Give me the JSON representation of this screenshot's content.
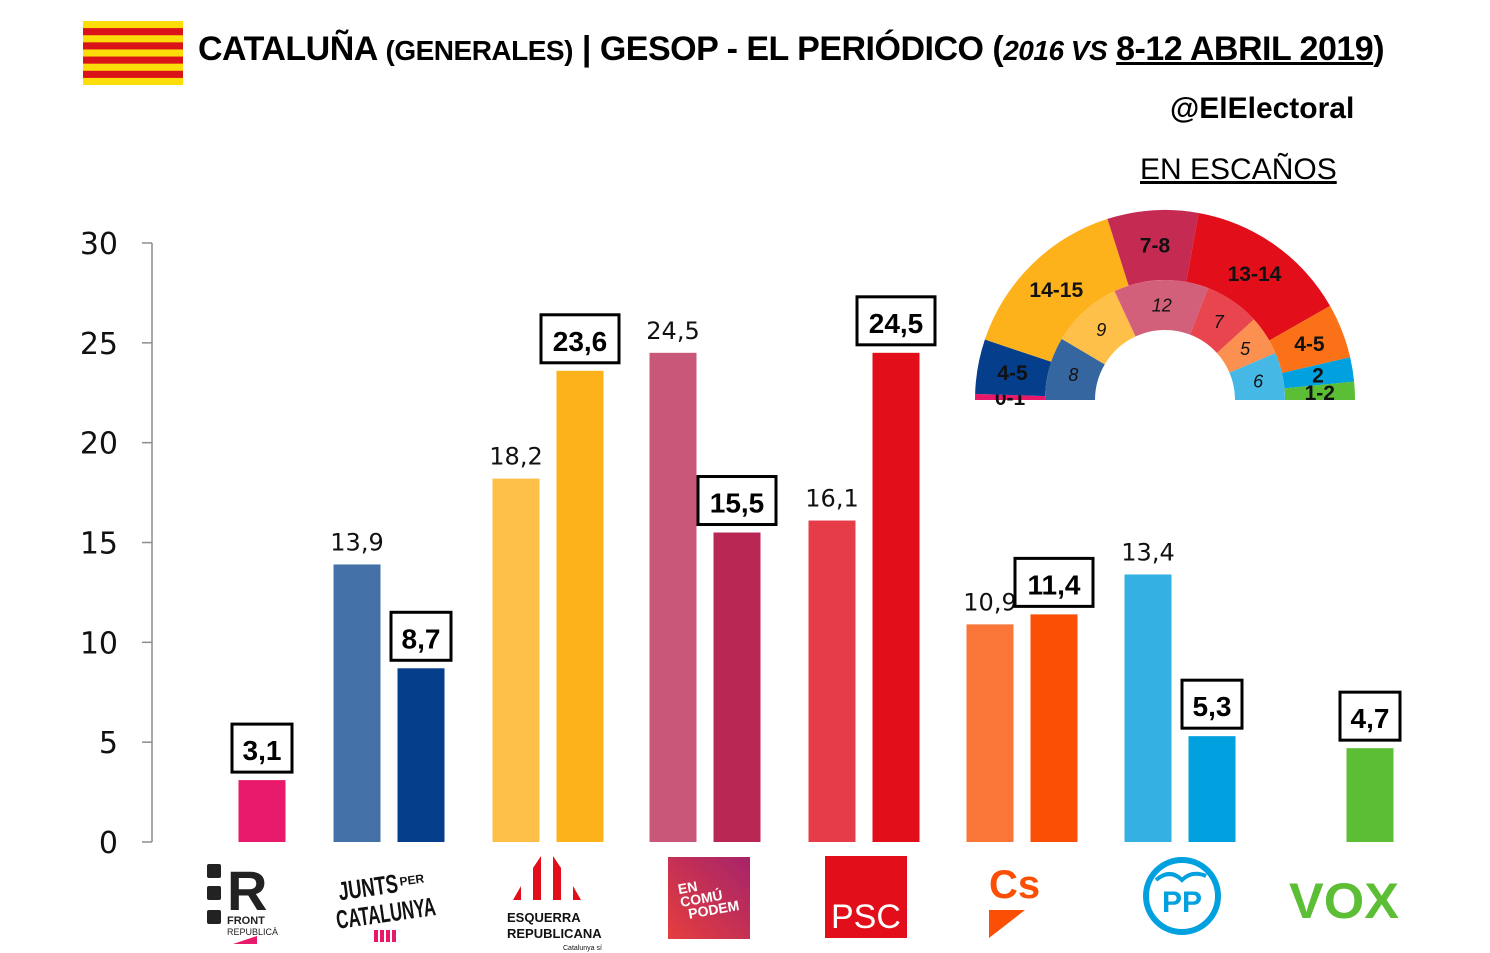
{
  "header": {
    "title_main": "CATALUÑA",
    "title_sub": "(GENERALES)",
    "title_sep": "|",
    "title_pollster": "GESOP - EL PERIÓDICO",
    "title_open": "(",
    "title_period_prev": "2016 VS",
    "title_period_current": "8-12 ABRIL 2019",
    "title_close": ")",
    "handle": "@ElElectoral",
    "flag_colors": [
      "#FCDD09",
      "#DA121A"
    ]
  },
  "hemicycle": {
    "title": "EN ESCAÑOS",
    "outer_2019": [
      {
        "party": "Front Republicà",
        "label": "0-1",
        "seats": 0.5,
        "color": "#E8196B"
      },
      {
        "party": "JxCat",
        "label": "4-5",
        "seats": 4.5,
        "color": "#053F8C"
      },
      {
        "party": "ERC",
        "label": "14-15",
        "seats": 14.5,
        "color": "#FDB11B"
      },
      {
        "party": "En Comú Podem",
        "label": "7-8",
        "seats": 7.5,
        "color": "#C42A52"
      },
      {
        "party": "PSC",
        "label": "13-14",
        "seats": 13.5,
        "color": "#E20E19"
      },
      {
        "party": "Cs",
        "label": "4-5",
        "seats": 4.5,
        "color": "#FB7117"
      },
      {
        "party": "PP",
        "label": "2",
        "seats": 2,
        "color": "#01A0DF"
      },
      {
        "party": "VOX",
        "label": "1-2",
        "seats": 1.5,
        "color": "#5CBE35"
      }
    ],
    "inner_2016": [
      {
        "party": "JxCat",
        "label": "8",
        "seats": 8,
        "color": "#35669F"
      },
      {
        "party": "ERC",
        "label": "9",
        "seats": 9,
        "color": "#FFC04A"
      },
      {
        "party": "En Comú Podem",
        "label": "12",
        "seats": 12,
        "color": "#D2607A"
      },
      {
        "party": "PSC",
        "label": "7",
        "seats": 7,
        "color": "#E8454E"
      },
      {
        "party": "Cs",
        "label": "5",
        "seats": 5,
        "color": "#FC9050"
      },
      {
        "party": "PP",
        "label": "6",
        "seats": 6,
        "color": "#45B8E5"
      }
    ]
  },
  "chart_data": {
    "type": "bar",
    "title": "CATALUÑA (GENERALES) | GESOP - EL PERIÓDICO (2016 VS 8-12 ABRIL 2019)",
    "xlabel": "",
    "ylabel": "",
    "ylim": [
      0,
      30
    ],
    "yticks": [
      "0",
      "5",
      "10",
      "15",
      "20",
      "25",
      "30"
    ],
    "grid": false,
    "categories": [
      "FRONT REPUBLICÀ",
      "JUNTS PER CATALUNYA",
      "ESQUERRA REPUBLICANA",
      "EN COMÚ PODEM",
      "PSC",
      "Cs",
      "PP",
      "VOX"
    ],
    "series": [
      {
        "name": "2016",
        "values": [
          null,
          13.9,
          18.2,
          24.5,
          16.1,
          10.9,
          13.4,
          null
        ],
        "labels": [
          null,
          "13,9",
          "18,2",
          "24,5",
          "16,1",
          "10,9",
          "13,4",
          null
        ],
        "colors": [
          null,
          "#4472A8",
          "#FFC04A",
          "#C9577A",
          "#E53C47",
          "#FA7638",
          "#35B0E2",
          null
        ]
      },
      {
        "name": "8-12 ABRIL 2019",
        "values": [
          3.1,
          8.7,
          23.6,
          15.5,
          24.5,
          11.4,
          5.3,
          4.7
        ],
        "labels": [
          "3,1",
          "8,7",
          "23,6",
          "15,5",
          "24,5",
          "11,4",
          "5,3",
          "4,7"
        ],
        "colors": [
          "#E8196B",
          "#053F8C",
          "#FDB11B",
          "#B82753",
          "#E20E19",
          "#FA4F05",
          "#01A0DF",
          "#5CBE35"
        ]
      }
    ]
  },
  "logos": {
    "front": {
      "name": "FRONT",
      "name2": "REPUBLICÀ",
      "letter": "R",
      "color": "#E8196B"
    },
    "junts": {
      "line1": "JUNTS",
      "per": "PER",
      "line2": "CATALUNYA",
      "color": "#E8196B"
    },
    "erc": {
      "line1": "ESQUERRA",
      "line2": "REPUBLICANA",
      "sub": "Catalunya sí",
      "color": "#E20E19"
    },
    "ecp": {
      "line1": "EN",
      "line2": "COMÚ",
      "line3": "PODEM",
      "color": "#C42A52"
    },
    "psc": {
      "text": "PSC",
      "color": "#E20E19"
    },
    "cs": {
      "text": "Cs",
      "color": "#FA4F05"
    },
    "pp": {
      "text": "PP",
      "color": "#01A0DF"
    },
    "vox": {
      "text": "VOX",
      "color": "#5CBE35"
    }
  }
}
